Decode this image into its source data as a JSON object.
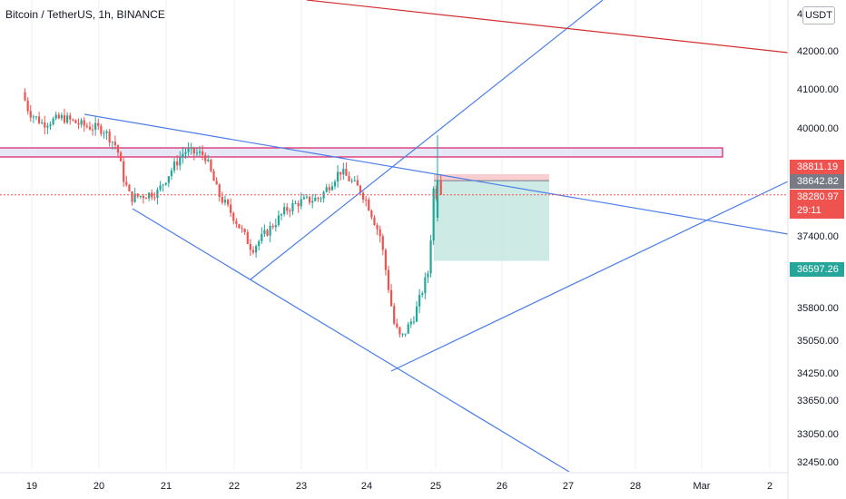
{
  "header": {
    "symbol": "Bitcoin / TetherUS, 1h, BINANCE",
    "currency_badge": "USDT"
  },
  "colors": {
    "up": "#26a69a",
    "down": "#ef5350",
    "trendline": "#4a7de9",
    "resistance_line": "#d32f2f",
    "zone_stroke": "#d81b60",
    "zone_fill": "#e6e8f8",
    "stop_zone": "#f7c5c9",
    "target_zone": "#c8e8e2",
    "axis_text": "#131722"
  },
  "chart_data": {
    "type": "candlestick",
    "x_axis": {
      "ticks": [
        "19",
        "20",
        "21",
        "22",
        "23",
        "24",
        "25",
        "26",
        "27",
        "28",
        "Mar",
        "2"
      ]
    },
    "y_axis": {
      "ticks": [
        42000.0,
        41000.0,
        40000.0,
        37400.0,
        35800.0,
        35050.0,
        34250.0,
        33650.0,
        33050.0,
        32450.0
      ],
      "top_truncated": "4"
    },
    "price_labels": [
      {
        "value": "38811.19",
        "color": "#ef5350"
      },
      {
        "value": "38642.82",
        "color": "#787b86"
      },
      {
        "value": "38280.97",
        "timer": "29:11",
        "color": "#ef5350"
      },
      {
        "value": "36597.26",
        "color": "#26a69a"
      }
    ],
    "key_path": [
      [
        18.9,
        40900
      ],
      [
        19.0,
        40400
      ],
      [
        19.2,
        40100
      ],
      [
        19.5,
        40250
      ],
      [
        19.8,
        40050
      ],
      [
        20.1,
        39950
      ],
      [
        20.3,
        39500
      ],
      [
        20.4,
        38700
      ],
      [
        20.5,
        38200
      ],
      [
        20.9,
        38350
      ],
      [
        21.1,
        38900
      ],
      [
        21.3,
        39400
      ],
      [
        21.6,
        39300
      ],
      [
        21.8,
        38300
      ],
      [
        22.0,
        37800
      ],
      [
        22.2,
        37200
      ],
      [
        22.3,
        36900
      ],
      [
        22.5,
        37300
      ],
      [
        22.8,
        37900
      ],
      [
        23.0,
        38100
      ],
      [
        23.3,
        38200
      ],
      [
        23.6,
        38900
      ],
      [
        23.9,
        38400
      ],
      [
        24.0,
        38100
      ],
      [
        24.2,
        37200
      ],
      [
        24.4,
        35000
      ],
      [
        24.5,
        34600
      ],
      [
        24.7,
        35200
      ],
      [
        24.9,
        36300
      ],
      [
        24.96,
        37600
      ],
      [
        25.0,
        39000
      ],
      [
        25.02,
        38300
      ]
    ]
  }
}
